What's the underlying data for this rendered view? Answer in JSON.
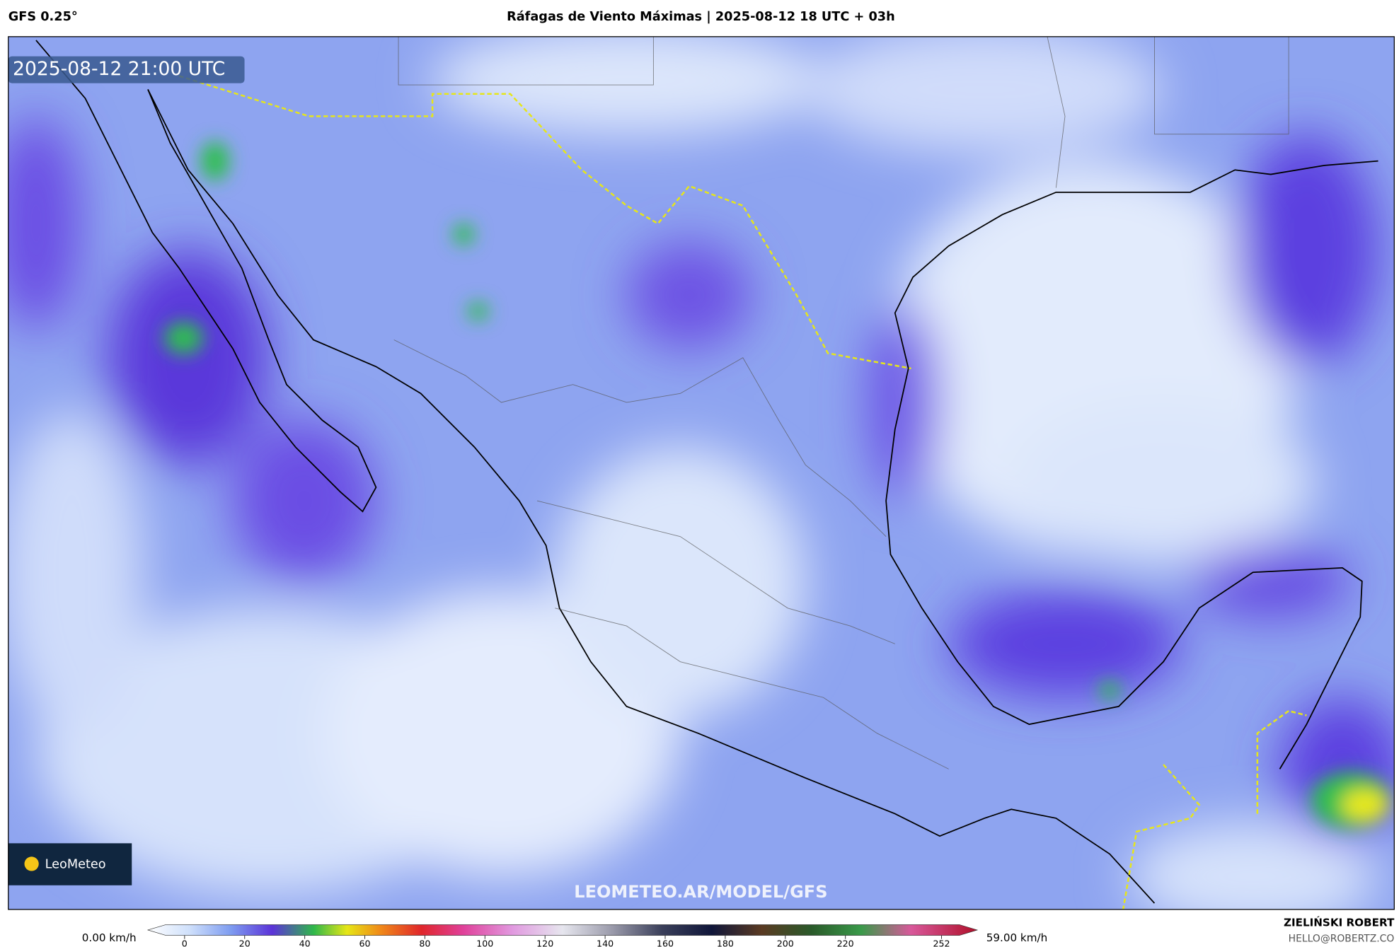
{
  "header": {
    "model": "GFS 0.25°",
    "title": "Ráfagas de Viento Máximas | 2025-08-12 18 UTC + 03h"
  },
  "map": {
    "timestamp": "2025-08-12 21:00 UTC",
    "logo": "LeoMeteo",
    "watermark": "LEOMETEO.AR/MODEL/GFS"
  },
  "colorbar": {
    "min_label": "0.00 km/h",
    "max_label": "59.00 km/h",
    "ticks": [
      0,
      20,
      40,
      60,
      80,
      100,
      120,
      140,
      160,
      180,
      200,
      220,
      252
    ]
  },
  "credits": {
    "author": "ZIELIŃSKI ROBERT",
    "contact": "HELLO@ROBERTZ.CO"
  }
}
